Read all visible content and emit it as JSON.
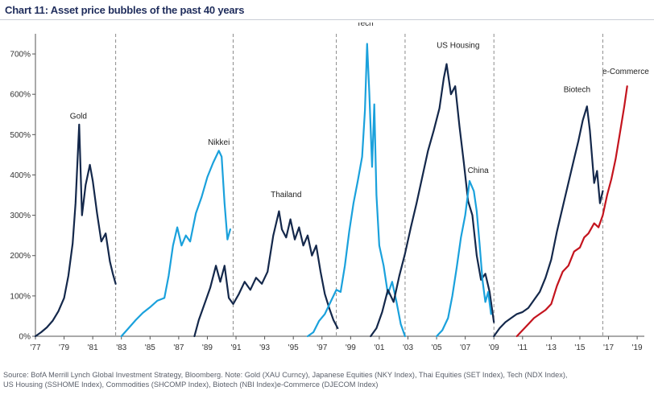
{
  "title": "Chart 11: Asset price bubbles of the past 40 years",
  "source": {
    "line1": "Source: BofA Merrill Lynch Global Investment Strategy, Bloomberg. Note: Gold (XAU Curncy), Japanese Equities (NKY Index), Thai Equities (SET Index), Tech (NDX Index),",
    "line2": "US Housing (SSHOME Index), Commodities (SHCOMP Index), Biotech (NBI Index)e-Commerce (DJECOM Index)"
  },
  "colors": {
    "dark": "#14284b",
    "light": "#1aa1dc",
    "red": "#c4141e",
    "grid": "#8c8c8c"
  },
  "chart_data": {
    "type": "line",
    "x_unit": "year",
    "xlim": [
      1977,
      2019.5
    ],
    "ylim": [
      0,
      750
    ],
    "y_ticks": [
      0,
      100,
      200,
      300,
      400,
      500,
      600,
      700
    ],
    "y_tick_labels": [
      "0%",
      "100%",
      "200%",
      "300%",
      "400%",
      "500%",
      "600%",
      "700%"
    ],
    "x_tick_labels": [
      "'77",
      "'79",
      "'81",
      "'83",
      "'85",
      "'87",
      "'89",
      "'91",
      "'93",
      "'95",
      "'97",
      "'99",
      "'01",
      "'03",
      "'05",
      "'07",
      "'09",
      "'11",
      "'13",
      "'15",
      "'17",
      "'19"
    ],
    "dividers": [
      1982.6,
      1990.8,
      1998.0,
      2002.8,
      2009.0,
      2016.6
    ],
    "series": [
      {
        "name": "Gold",
        "color": "dark",
        "label_at": [
          1980.0,
          540
        ],
        "points": [
          [
            1977.0,
            0
          ],
          [
            1977.4,
            10
          ],
          [
            1977.8,
            22
          ],
          [
            1978.2,
            38
          ],
          [
            1978.6,
            62
          ],
          [
            1979.0,
            95
          ],
          [
            1979.3,
            150
          ],
          [
            1979.6,
            230
          ],
          [
            1979.8,
            330
          ],
          [
            1980.05,
            525
          ],
          [
            1980.25,
            300
          ],
          [
            1980.5,
            375
          ],
          [
            1980.8,
            425
          ],
          [
            1981.0,
            385
          ],
          [
            1981.3,
            305
          ],
          [
            1981.6,
            235
          ],
          [
            1981.9,
            255
          ],
          [
            1982.2,
            185
          ],
          [
            1982.4,
            155
          ],
          [
            1982.6,
            130
          ]
        ]
      },
      {
        "name": "Nikkei",
        "color": "light",
        "label_at": [
          1989.8,
          475
        ],
        "points": [
          [
            1983.0,
            0
          ],
          [
            1983.5,
            20
          ],
          [
            1984.0,
            40
          ],
          [
            1984.5,
            58
          ],
          [
            1985.0,
            72
          ],
          [
            1985.5,
            88
          ],
          [
            1986.0,
            95
          ],
          [
            1986.3,
            150
          ],
          [
            1986.6,
            225
          ],
          [
            1986.9,
            270
          ],
          [
            1987.2,
            225
          ],
          [
            1987.5,
            250
          ],
          [
            1987.8,
            235
          ],
          [
            1988.2,
            305
          ],
          [
            1988.6,
            345
          ],
          [
            1989.0,
            395
          ],
          [
            1989.4,
            430
          ],
          [
            1989.8,
            460
          ],
          [
            1990.0,
            445
          ],
          [
            1990.2,
            330
          ],
          [
            1990.4,
            240
          ],
          [
            1990.6,
            265
          ]
        ]
      },
      {
        "name": "Thailand",
        "color": "dark",
        "label_at": [
          1994.5,
          345
        ],
        "points": [
          [
            1988.1,
            0
          ],
          [
            1988.4,
            40
          ],
          [
            1988.8,
            80
          ],
          [
            1989.2,
            120
          ],
          [
            1989.6,
            175
          ],
          [
            1989.9,
            135
          ],
          [
            1990.2,
            175
          ],
          [
            1990.5,
            95
          ],
          [
            1990.8,
            80
          ],
          [
            1991.2,
            105
          ],
          [
            1991.6,
            135
          ],
          [
            1992.0,
            115
          ],
          [
            1992.4,
            145
          ],
          [
            1992.8,
            130
          ],
          [
            1993.2,
            160
          ],
          [
            1993.6,
            250
          ],
          [
            1994.0,
            310
          ],
          [
            1994.2,
            265
          ],
          [
            1994.5,
            245
          ],
          [
            1994.8,
            290
          ],
          [
            1995.1,
            240
          ],
          [
            1995.4,
            270
          ],
          [
            1995.7,
            225
          ],
          [
            1996.0,
            250
          ],
          [
            1996.3,
            200
          ],
          [
            1996.6,
            225
          ],
          [
            1996.9,
            160
          ],
          [
            1997.2,
            105
          ],
          [
            1997.5,
            70
          ],
          [
            1997.8,
            40
          ],
          [
            1998.1,
            20
          ]
        ]
      },
      {
        "name": "Tech",
        "color": "light",
        "label_at": [
          2000.0,
          770
        ],
        "points": [
          [
            1996.0,
            0
          ],
          [
            1996.4,
            10
          ],
          [
            1996.8,
            38
          ],
          [
            1997.2,
            55
          ],
          [
            1997.6,
            85
          ],
          [
            1998.0,
            115
          ],
          [
            1998.3,
            110
          ],
          [
            1998.6,
            175
          ],
          [
            1998.9,
            260
          ],
          [
            1999.2,
            330
          ],
          [
            1999.5,
            385
          ],
          [
            1999.8,
            445
          ],
          [
            2000.0,
            560
          ],
          [
            2000.15,
            725
          ],
          [
            2000.3,
            605
          ],
          [
            2000.5,
            420
          ],
          [
            2000.65,
            575
          ],
          [
            2000.8,
            350
          ],
          [
            2001.0,
            225
          ],
          [
            2001.3,
            175
          ],
          [
            2001.6,
            105
          ],
          [
            2001.9,
            135
          ],
          [
            2002.2,
            85
          ],
          [
            2002.5,
            30
          ],
          [
            2002.8,
            0
          ]
        ]
      },
      {
        "name": "US Housing",
        "color": "dark",
        "label_at": [
          2006.5,
          715
        ],
        "points": [
          [
            2000.4,
            0
          ],
          [
            2000.8,
            20
          ],
          [
            2001.2,
            60
          ],
          [
            2001.6,
            115
          ],
          [
            2002.0,
            85
          ],
          [
            2002.4,
            150
          ],
          [
            2002.8,
            205
          ],
          [
            2003.2,
            270
          ],
          [
            2003.6,
            330
          ],
          [
            2004.0,
            395
          ],
          [
            2004.4,
            460
          ],
          [
            2004.8,
            510
          ],
          [
            2005.2,
            565
          ],
          [
            2005.5,
            640
          ],
          [
            2005.7,
            675
          ],
          [
            2006.0,
            600
          ],
          [
            2006.3,
            620
          ],
          [
            2006.6,
            520
          ],
          [
            2006.9,
            430
          ],
          [
            2007.2,
            335
          ],
          [
            2007.5,
            300
          ],
          [
            2007.8,
            200
          ],
          [
            2008.1,
            140
          ],
          [
            2008.4,
            155
          ],
          [
            2008.7,
            110
          ],
          [
            2009.0,
            35
          ]
        ]
      },
      {
        "name": "China",
        "color": "light",
        "label_at": [
          2007.9,
          405
        ],
        "points": [
          [
            2005.0,
            0
          ],
          [
            2005.4,
            15
          ],
          [
            2005.8,
            45
          ],
          [
            2006.1,
            100
          ],
          [
            2006.4,
            170
          ],
          [
            2006.7,
            245
          ],
          [
            2007.0,
            300
          ],
          [
            2007.3,
            385
          ],
          [
            2007.6,
            360
          ],
          [
            2007.8,
            310
          ],
          [
            2008.0,
            230
          ],
          [
            2008.2,
            140
          ],
          [
            2008.4,
            85
          ],
          [
            2008.6,
            110
          ],
          [
            2008.8,
            55
          ]
        ]
      },
      {
        "name": "Biotech",
        "color": "dark",
        "label_at": [
          2014.8,
          605
        ],
        "points": [
          [
            2009.0,
            0
          ],
          [
            2009.4,
            20
          ],
          [
            2009.8,
            35
          ],
          [
            2010.2,
            45
          ],
          [
            2010.6,
            55
          ],
          [
            2011.0,
            60
          ],
          [
            2011.4,
            70
          ],
          [
            2011.8,
            90
          ],
          [
            2012.2,
            110
          ],
          [
            2012.6,
            145
          ],
          [
            2013.0,
            190
          ],
          [
            2013.4,
            260
          ],
          [
            2013.8,
            320
          ],
          [
            2014.2,
            380
          ],
          [
            2014.6,
            440
          ],
          [
            2014.9,
            485
          ],
          [
            2015.2,
            535
          ],
          [
            2015.5,
            570
          ],
          [
            2015.7,
            510
          ],
          [
            2016.0,
            380
          ],
          [
            2016.2,
            410
          ],
          [
            2016.4,
            330
          ],
          [
            2016.6,
            360
          ]
        ]
      },
      {
        "name": "e-Commerce",
        "color": "red",
        "label_at": [
          2018.2,
          650
        ],
        "points": [
          [
            2010.6,
            0
          ],
          [
            2011.0,
            15
          ],
          [
            2011.4,
            30
          ],
          [
            2011.8,
            45
          ],
          [
            2012.2,
            55
          ],
          [
            2012.6,
            65
          ],
          [
            2013.0,
            80
          ],
          [
            2013.4,
            125
          ],
          [
            2013.8,
            160
          ],
          [
            2014.2,
            175
          ],
          [
            2014.6,
            210
          ],
          [
            2015.0,
            220
          ],
          [
            2015.3,
            245
          ],
          [
            2015.6,
            255
          ],
          [
            2016.0,
            280
          ],
          [
            2016.3,
            270
          ],
          [
            2016.6,
            300
          ],
          [
            2016.9,
            350
          ],
          [
            2017.2,
            390
          ],
          [
            2017.5,
            440
          ],
          [
            2017.8,
            505
          ],
          [
            2018.1,
            570
          ],
          [
            2018.3,
            620
          ]
        ]
      }
    ]
  }
}
